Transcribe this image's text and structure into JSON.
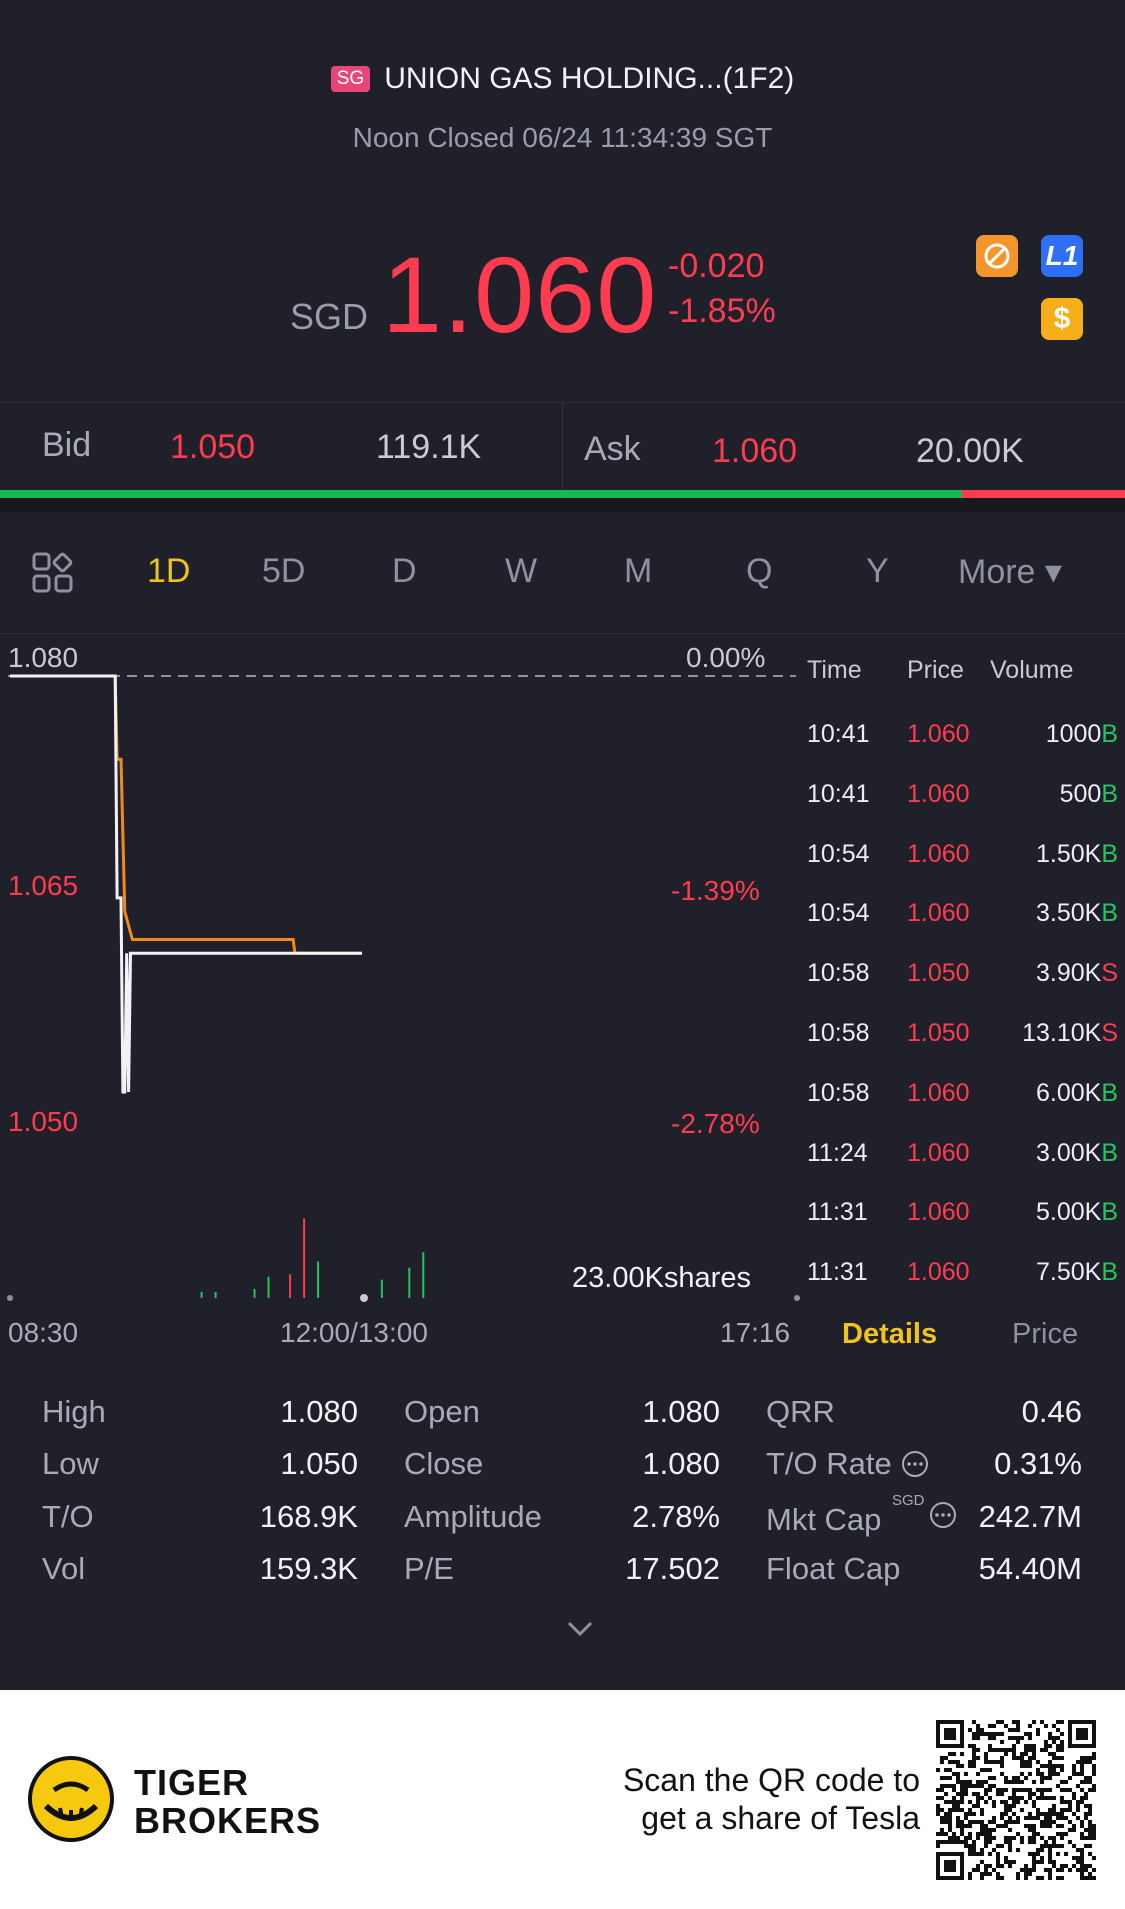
{
  "header": {
    "market_badge": "SG",
    "title": "UNION GAS HOLDING...(1F2)",
    "status": "Noon Closed 06/24 11:34:39 SGT",
    "currency": "SGD",
    "price": "1.060",
    "change": "-0.020",
    "change_pct": "-1.85%",
    "icon_l1": "L1",
    "icon_dollar": "$"
  },
  "bid_ask": {
    "bid_label": "Bid",
    "bid_price": "1.050",
    "bid_volume": "119.1K",
    "ask_label": "Ask",
    "ask_price": "1.060",
    "ask_volume": "20.00K",
    "bid_share": 0.855
  },
  "tabs": [
    "1D",
    "5D",
    "D",
    "W",
    "M",
    "Q",
    "Y",
    "More ▾"
  ],
  "active_tab": "1D",
  "chart": {
    "y_top": "1.080",
    "y_mid": "1.065",
    "y_bottom": "1.050",
    "pct_top": "0.00%",
    "pct_mid": "-1.39%",
    "pct_bottom": "-2.78%",
    "volume_label": "23.00Kshares",
    "x_start": "08:30",
    "x_mid": "12:00/13:00",
    "x_end": "17:16"
  },
  "chart_data": {
    "type": "line",
    "ylim": [
      1.05,
      1.08
    ],
    "series": [
      {
        "x": [
          "08:30",
          "09:25",
          "09:26",
          "09:28",
          "09:30",
          "09:32",
          "09:34",
          "09:40",
          "10:00",
          "10:30",
          "10:58",
          "10:59",
          "11:34"
        ],
        "values": [
          1.08,
          1.08,
          1.074,
          1.074,
          1.063,
          1.062,
          1.061,
          1.061,
          1.061,
          1.061,
          1.061,
          1.06,
          1.06
        ]
      },
      {
        "x": [
          "08:30",
          "09:25",
          "09:26",
          "09:28",
          "09:29",
          "09:30",
          "09:31",
          "09:32",
          "09:33",
          "11:34"
        ],
        "values": [
          1.08,
          1.08,
          1.064,
          1.064,
          1.05,
          1.05,
          1.06,
          1.05,
          1.06,
          1.06
        ]
      }
    ],
    "volume_max": 23000
  },
  "trades": {
    "headers": {
      "time": "Time",
      "price": "Price",
      "volume": "Volume"
    },
    "rows": [
      {
        "time": "10:41",
        "price": "1.060",
        "volume": "1000",
        "side": "B"
      },
      {
        "time": "10:41",
        "price": "1.060",
        "volume": "500",
        "side": "B"
      },
      {
        "time": "10:54",
        "price": "1.060",
        "volume": "1.50K",
        "side": "B"
      },
      {
        "time": "10:54",
        "price": "1.060",
        "volume": "3.50K",
        "side": "B"
      },
      {
        "time": "10:58",
        "price": "1.050",
        "volume": "3.90K",
        "side": "S"
      },
      {
        "time": "10:58",
        "price": "1.050",
        "volume": "13.10K",
        "side": "S"
      },
      {
        "time": "10:58",
        "price": "1.060",
        "volume": "6.00K",
        "side": "B"
      },
      {
        "time": "11:24",
        "price": "1.060",
        "volume": "3.00K",
        "side": "B"
      },
      {
        "time": "11:31",
        "price": "1.060",
        "volume": "5.00K",
        "side": "B"
      },
      {
        "time": "11:31",
        "price": "1.060",
        "volume": "7.50K",
        "side": "B"
      }
    ],
    "details_tab": "Details",
    "price_tab": "Price"
  },
  "stats": {
    "high_label": "High",
    "high": "1.080",
    "low_label": "Low",
    "low": "1.050",
    "to_label": "T/O",
    "to": "168.9K",
    "vol_label": "Vol",
    "vol": "159.3K",
    "open_label": "Open",
    "open": "1.080",
    "close_label": "Close",
    "close": "1.080",
    "amp_label": "Amplitude",
    "amp": "2.78%",
    "pe_label": "P/E",
    "pe": "17.502",
    "qrr_label": "QRR",
    "qrr": "0.46",
    "torate_label": "T/O Rate",
    "torate": "0.31%",
    "mktcap_label": "Mkt Cap",
    "mktcap_unit": "SGD",
    "mktcap": "242.7M",
    "floatcap_label": "Float Cap",
    "floatcap": "54.40M"
  },
  "footer": {
    "brand_line1": "TIGER",
    "brand_line2": "BROKERS",
    "scan_line1": "Scan the QR code to",
    "scan_line2": "get a share of Tesla"
  },
  "colors": {
    "up": "#22c55e",
    "down": "#ff3b4f",
    "accent": "#f0c419",
    "background": "#1f2029"
  }
}
